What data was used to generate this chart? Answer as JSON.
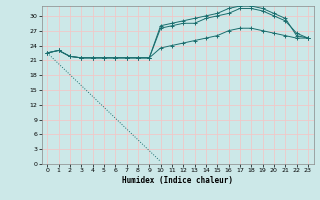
{
  "xlabel": "Humidex (Indice chaleur)",
  "xlim": [
    -0.5,
    23.5
  ],
  "ylim": [
    0,
    32
  ],
  "xticks": [
    0,
    1,
    2,
    3,
    4,
    5,
    6,
    7,
    8,
    9,
    10,
    11,
    12,
    13,
    14,
    15,
    16,
    17,
    18,
    19,
    20,
    21,
    22,
    23
  ],
  "yticks": [
    0,
    3,
    6,
    9,
    12,
    15,
    18,
    21,
    24,
    27,
    30
  ],
  "background_color": "#cce8e8",
  "grid_color": "#f0c8c8",
  "line_color": "#1a6e6e",
  "series": [
    {
      "x": [
        0,
        1,
        2,
        3,
        4,
        5,
        6,
        7,
        8,
        9,
        10,
        11,
        12,
        13,
        14,
        15,
        16,
        17,
        18,
        19,
        20,
        21,
        22,
        23
      ],
      "y": [
        22.5,
        23.0,
        21.8,
        21.5,
        21.5,
        21.5,
        21.5,
        21.5,
        21.5,
        21.5,
        28.0,
        28.5,
        29.0,
        29.5,
        30.0,
        30.5,
        31.5,
        32.0,
        32.0,
        31.5,
        30.5,
        29.5,
        26.0,
        25.5
      ],
      "marker": "+",
      "linestyle": "solid"
    },
    {
      "x": [
        0,
        1,
        2,
        3,
        4,
        5,
        6,
        7,
        8,
        9,
        10,
        11,
        12,
        13,
        14,
        15,
        16,
        17,
        18,
        19,
        20,
        21,
        22,
        23
      ],
      "y": [
        22.5,
        23.0,
        21.8,
        21.5,
        21.5,
        21.5,
        21.5,
        21.5,
        21.5,
        21.5,
        27.5,
        28.0,
        28.5,
        28.5,
        29.5,
        30.0,
        30.5,
        31.5,
        31.5,
        31.0,
        30.0,
        29.0,
        26.5,
        25.5
      ],
      "marker": "+",
      "linestyle": "solid"
    },
    {
      "x": [
        0,
        1,
        2,
        3,
        4,
        5,
        6,
        7,
        8,
        9,
        10,
        11,
        12,
        13,
        14,
        15,
        16,
        17,
        18,
        19,
        20,
        21,
        22,
        23
      ],
      "y": [
        22.5,
        23.0,
        21.8,
        21.5,
        21.5,
        21.5,
        21.5,
        21.5,
        21.5,
        21.5,
        23.5,
        24.0,
        24.5,
        25.0,
        25.5,
        26.0,
        27.0,
        27.5,
        27.5,
        27.0,
        26.5,
        26.0,
        25.5,
        25.5
      ],
      "marker": "+",
      "linestyle": "solid"
    },
    {
      "x": [
        0,
        10
      ],
      "y": [
        22.5,
        0.5
      ],
      "marker": null,
      "linestyle": "dotted"
    }
  ]
}
